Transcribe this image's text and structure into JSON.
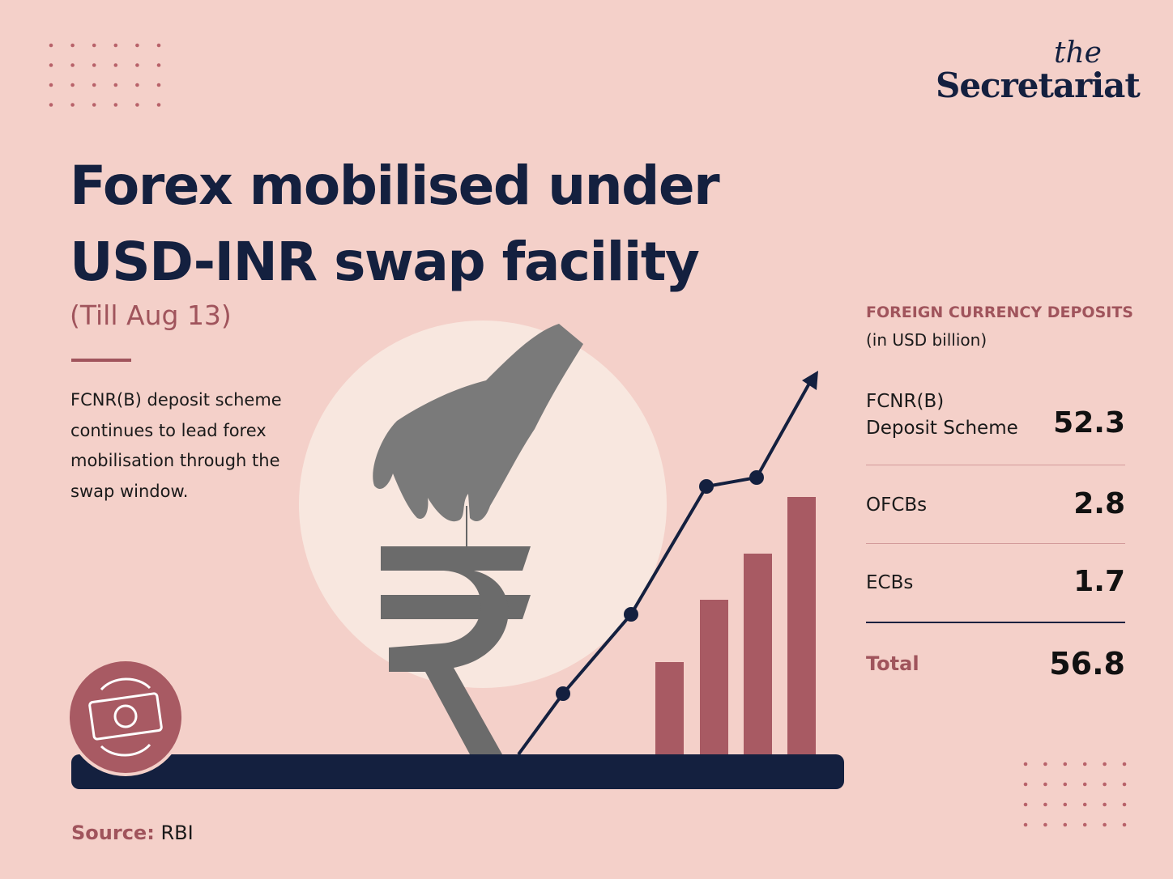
{
  "brand": {
    "top": "the",
    "name": "Secretariat"
  },
  "header": {
    "title_lines": [
      "Forex mobilised under",
      "USD-INR swap facility"
    ],
    "subtitle": "(Till Aug 13)"
  },
  "description": "FCNR(B) deposit scheme continues to lead forex mobilisation through the swap window.",
  "table": {
    "heading": "FOREIGN CURRENCY DEPOSITS",
    "unit": "(in USD billion)",
    "rows": [
      {
        "label": [
          "FCNR(B)",
          "Deposit Scheme"
        ],
        "value": 52.3
      },
      {
        "label": [
          "OFCBs"
        ],
        "value": 2.8
      },
      {
        "label": [
          "ECBs"
        ],
        "value": 1.7
      }
    ],
    "total": {
      "label": "Total",
      "value": 56.8
    }
  },
  "source": {
    "label": "Source:",
    "value": "RBI"
  }
}
